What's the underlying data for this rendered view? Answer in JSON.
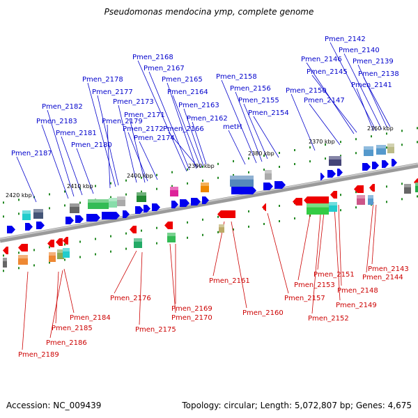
{
  "title": "Pseudomonas mendocina ymp, complete genome",
  "footer": {
    "accession": "Accession: NC_009439",
    "summary": "Topology: circular; Length: 5,072,807 bp; Genes: 4,675"
  },
  "colors": {
    "forward": "#0000ee",
    "reverse": "#ee0000",
    "top_label": "#0000cc",
    "bottom_label": "#cc0000",
    "dot": "#228822",
    "axis": "#888888"
  },
  "kbp_ticks": [
    {
      "label": "2420 kbp"
    },
    {
      "label": "2410 kbp"
    },
    {
      "label": "2400 kbp"
    },
    {
      "label": "2390 kbp"
    },
    {
      "label": "2380 kbp"
    },
    {
      "label": "2370 kbp"
    },
    {
      "label": "2360 kbp"
    }
  ],
  "top_genes": [
    "Pmen_2187",
    "Pmen_2183",
    "Pmen_2182",
    "Pmen_2181",
    "Pmen_2180",
    "Pmen_2179",
    "Pmen_2178",
    "Pmen_2177",
    "Pmen_2173",
    "Pmen_2171",
    "Pmen_2172",
    "Pmen_2174",
    "Pmen_2168",
    "Pmen_2167",
    "Pmen_2165",
    "Pmen_2164",
    "Pmen_2163",
    "Pmen_2162",
    "Pmen_2166",
    "Pmen_2158",
    "Pmen_2156",
    "metH",
    "Pmen_2155",
    "Pmen_2154",
    "Pmen_2150",
    "Pmen_2147",
    "Pmen_2146",
    "Pmen_2145",
    "Pmen_2142",
    "Pmen_2140",
    "Pmen_2139",
    "Pmen_2138",
    "Pmen_2141"
  ],
  "bottom_genes": [
    "Pmen_2189",
    "Pmen_2186",
    "Pmen_2185",
    "Pmen_2184",
    "Pmen_2176",
    "Pmen_2175",
    "Pmen_2170",
    "Pmen_2169",
    "Pmen_2161",
    "Pmen_2160",
    "Pmen_2157",
    "Pmen_2153",
    "Pmen_2152",
    "Pmen_2151",
    "Pmen_2149",
    "Pmen_2148",
    "Pmen_2144",
    "Pmen_2143"
  ]
}
